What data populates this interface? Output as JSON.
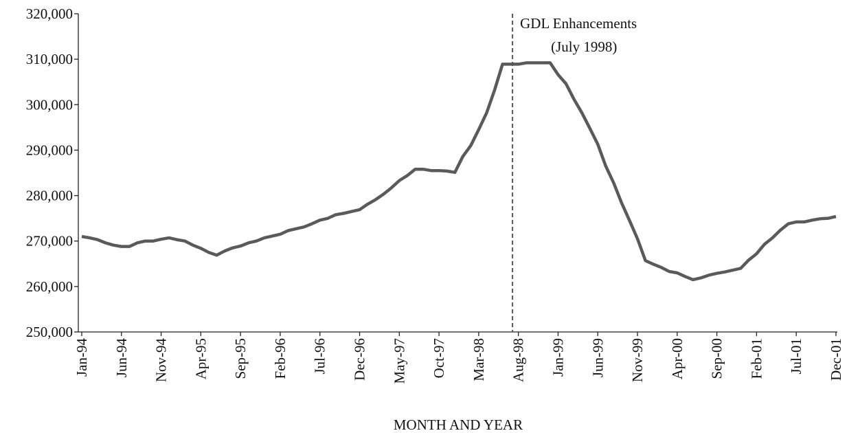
{
  "chart_data": {
    "type": "line",
    "xlabel": "MONTH AND YEAR",
    "categories": [
      "Jan-94",
      null,
      null,
      null,
      null,
      "Jun-94",
      null,
      null,
      null,
      null,
      "Nov-94",
      null,
      null,
      null,
      null,
      "Apr-95",
      null,
      null,
      null,
      null,
      "Sep-95",
      null,
      null,
      null,
      null,
      "Feb-96",
      null,
      null,
      null,
      null,
      "Jul-96",
      null,
      null,
      null,
      null,
      "Dec-96",
      null,
      null,
      null,
      null,
      "May-97",
      null,
      null,
      null,
      null,
      "Oct-97",
      null,
      null,
      null,
      null,
      "Mar-98",
      null,
      null,
      null,
      null,
      "Aug-98",
      null,
      null,
      null,
      null,
      "Jan-99",
      null,
      null,
      null,
      null,
      "Jun-99",
      null,
      null,
      null,
      null,
      "Nov-99",
      null,
      null,
      null,
      null,
      "Apr-00",
      null,
      null,
      null,
      null,
      "Sep-00",
      null,
      null,
      null,
      null,
      "Feb-01",
      null,
      null,
      null,
      null,
      "Jul-01",
      null,
      null,
      null,
      null,
      "Dec-01"
    ],
    "values": [
      271000,
      270700,
      270300,
      269600,
      269100,
      268800,
      268800,
      269600,
      270000,
      270000,
      270400,
      270700,
      270300,
      270000,
      269100,
      268400,
      267500,
      266900,
      267800,
      268500,
      268900,
      269600,
      270000,
      270700,
      271100,
      271500,
      272300,
      272700,
      273100,
      273800,
      274600,
      275000,
      275800,
      276100,
      276500,
      276900,
      278100,
      279100,
      280300,
      281700,
      283300,
      284400,
      285800,
      285800,
      285500,
      285500,
      285400,
      285100,
      288600,
      291000,
      294500,
      298200,
      303200,
      308900,
      308900,
      308900,
      309200,
      309200,
      309200,
      309200,
      306600,
      304600,
      301200,
      298200,
      294800,
      291300,
      286500,
      282800,
      278400,
      274500,
      270500,
      265700,
      264900,
      264200,
      263300,
      263000,
      262200,
      261500,
      261900,
      262500,
      262900,
      263200,
      263600,
      264000,
      265800,
      267200,
      269300,
      270700,
      272400,
      273800,
      274200,
      274200,
      274600,
      274900,
      275000,
      275400
    ],
    "color": "#5a5a5a",
    "ylim": [
      250000,
      320000
    ],
    "yticks": [
      {
        "value": 250000,
        "label": "250,000"
      },
      {
        "value": 260000,
        "label": "260,000"
      },
      {
        "value": 270000,
        "label": "270,000"
      },
      {
        "value": 280000,
        "label": "280,000"
      },
      {
        "value": 290000,
        "label": "290,000"
      },
      {
        "value": 300000,
        "label": "300,000"
      },
      {
        "value": 310000,
        "label": "310,000"
      },
      {
        "value": 320000,
        "label": "320,000"
      }
    ],
    "annotation": {
      "lines": [
        "GDL Enhancements",
        "(July 1998)"
      ],
      "x": 54
    }
  }
}
